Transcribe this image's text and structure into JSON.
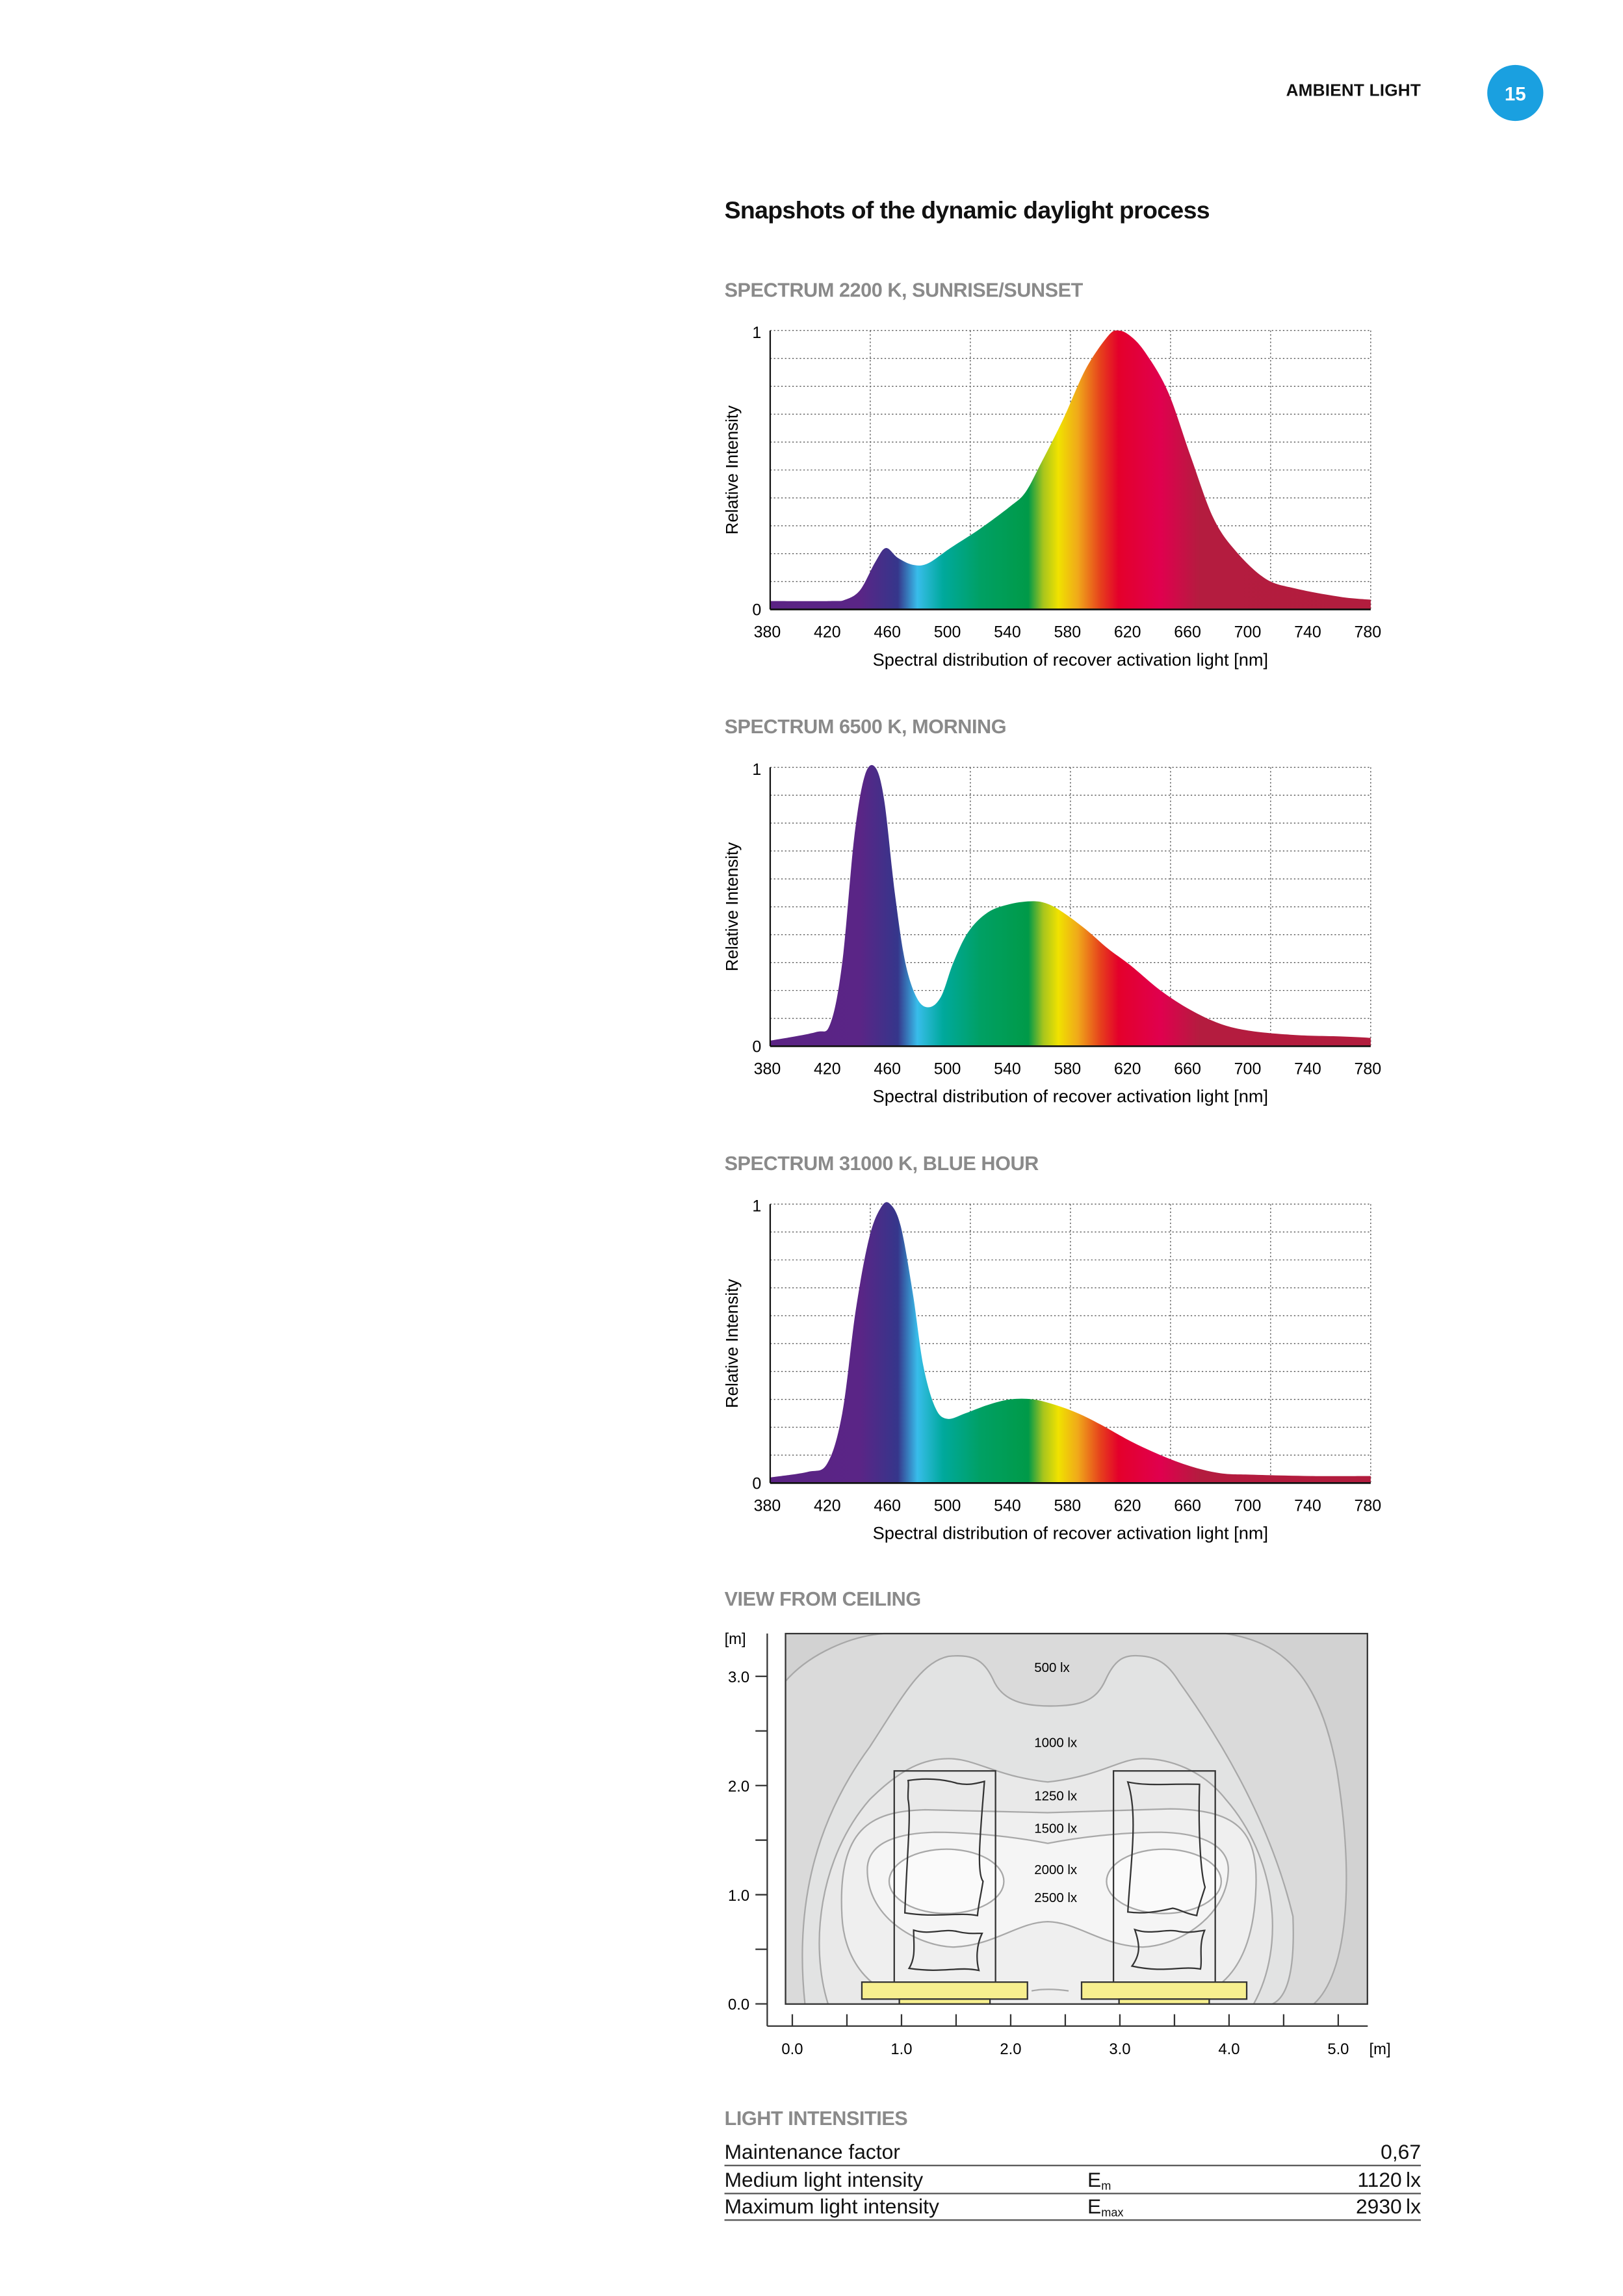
{
  "header": {
    "section": "AMBIENT LIGHT",
    "page_number": "15",
    "accent_color": "#1aa0e0"
  },
  "title": "Snapshots of the dynamic daylight process",
  "chart_data": [
    {
      "type": "area",
      "title": "SPECTRUM 2200 K, SUNRISE/SUNSET",
      "xlabel": "Spectral distribution of recover activation light [nm]",
      "ylabel": "Relative Intensity",
      "xlim": [
        380,
        780
      ],
      "ylim": [
        0,
        1
      ],
      "x_ticks": [
        "380",
        "420",
        "460",
        "500",
        "540",
        "580",
        "620",
        "660",
        "700",
        "740",
        "780"
      ],
      "y_ticks": [
        "0",
        "1"
      ],
      "grid": true,
      "x": [
        380,
        420,
        430,
        440,
        450,
        457,
        465,
        475,
        485,
        500,
        520,
        540,
        550,
        560,
        575,
        590,
        605,
        612,
        620,
        630,
        645,
        660,
        675,
        690,
        710,
        730,
        760,
        780
      ],
      "y": [
        0.03,
        0.03,
        0.035,
        0.07,
        0.17,
        0.22,
        0.185,
        0.16,
        0.165,
        0.22,
        0.29,
        0.37,
        0.42,
        0.52,
        0.68,
        0.86,
        0.98,
        1.0,
        0.98,
        0.92,
        0.78,
        0.55,
        0.33,
        0.21,
        0.11,
        0.075,
        0.045,
        0.035
      ]
    },
    {
      "type": "area",
      "title": "SPECTRUM 6500 K, MORNING",
      "xlabel": "Spectral distribution of recover activation light [nm]",
      "ylabel": "Relative Intensity",
      "xlim": [
        380,
        780
      ],
      "ylim": [
        0,
        1
      ],
      "x_ticks": [
        "380",
        "420",
        "460",
        "500",
        "540",
        "580",
        "620",
        "660",
        "700",
        "740",
        "780"
      ],
      "y_ticks": [
        "0",
        "1"
      ],
      "grid": true,
      "x": [
        380,
        410,
        420,
        428,
        436,
        443,
        450,
        456,
        463,
        470,
        478,
        486,
        494,
        502,
        512,
        525,
        540,
        555,
        565,
        575,
        590,
        605,
        620,
        640,
        660,
        680,
        700,
        730,
        760,
        780
      ],
      "y": [
        0.02,
        0.05,
        0.08,
        0.3,
        0.75,
        0.97,
        1.0,
        0.88,
        0.55,
        0.3,
        0.17,
        0.14,
        0.18,
        0.3,
        0.41,
        0.48,
        0.51,
        0.52,
        0.51,
        0.48,
        0.42,
        0.35,
        0.29,
        0.2,
        0.13,
        0.08,
        0.055,
        0.04,
        0.035,
        0.03
      ]
    },
    {
      "type": "area",
      "title": "SPECTRUM 31000 K, BLUE HOUR",
      "xlabel": "Spectral distribution of recover activation light [nm]",
      "ylabel": "Relative Intensity",
      "xlim": [
        380,
        780
      ],
      "ylim": [
        0,
        1
      ],
      "x_ticks": [
        "380",
        "420",
        "460",
        "500",
        "540",
        "580",
        "620",
        "660",
        "700",
        "740",
        "780"
      ],
      "y_ticks": [
        "0",
        "1"
      ],
      "grid": true,
      "x": [
        380,
        405,
        418,
        428,
        437,
        446,
        454,
        460,
        467,
        475,
        482,
        490,
        498,
        510,
        525,
        540,
        555,
        570,
        585,
        600,
        620,
        640,
        660,
        680,
        700,
        740,
        780
      ],
      "y": [
        0.02,
        0.04,
        0.07,
        0.25,
        0.62,
        0.88,
        0.99,
        1.0,
        0.92,
        0.68,
        0.42,
        0.27,
        0.23,
        0.25,
        0.28,
        0.3,
        0.3,
        0.28,
        0.25,
        0.21,
        0.15,
        0.1,
        0.06,
        0.035,
        0.03,
        0.025,
        0.025
      ]
    }
  ],
  "ceiling": {
    "title": "VIEW FROM CEILING",
    "unit": "[m]",
    "y_ticks": [
      "0.0",
      "1.0",
      "2.0",
      "3.0"
    ],
    "x_ticks": [
      "0.0",
      "1.0",
      "2.0",
      "3.0",
      "4.0",
      "5.0"
    ],
    "contour_labels": [
      "500 lx",
      "1000 lx",
      "1250 lx",
      "1500 lx",
      "2000 lx",
      "2500 lx"
    ],
    "luminaire_color": "#f7ef8f"
  },
  "light_intensities": {
    "title": "LIGHT INTENSITIES",
    "rows": [
      {
        "label": "Maintenance factor",
        "symbol": "",
        "sub": "",
        "value": "0,67"
      },
      {
        "label": "Medium light intensity",
        "symbol": "E",
        "sub": "m",
        "value": "1120 lx"
      },
      {
        "label": "Maximum light intensity",
        "symbol": "E",
        "sub": "max",
        "value": "2930 lx"
      }
    ]
  }
}
